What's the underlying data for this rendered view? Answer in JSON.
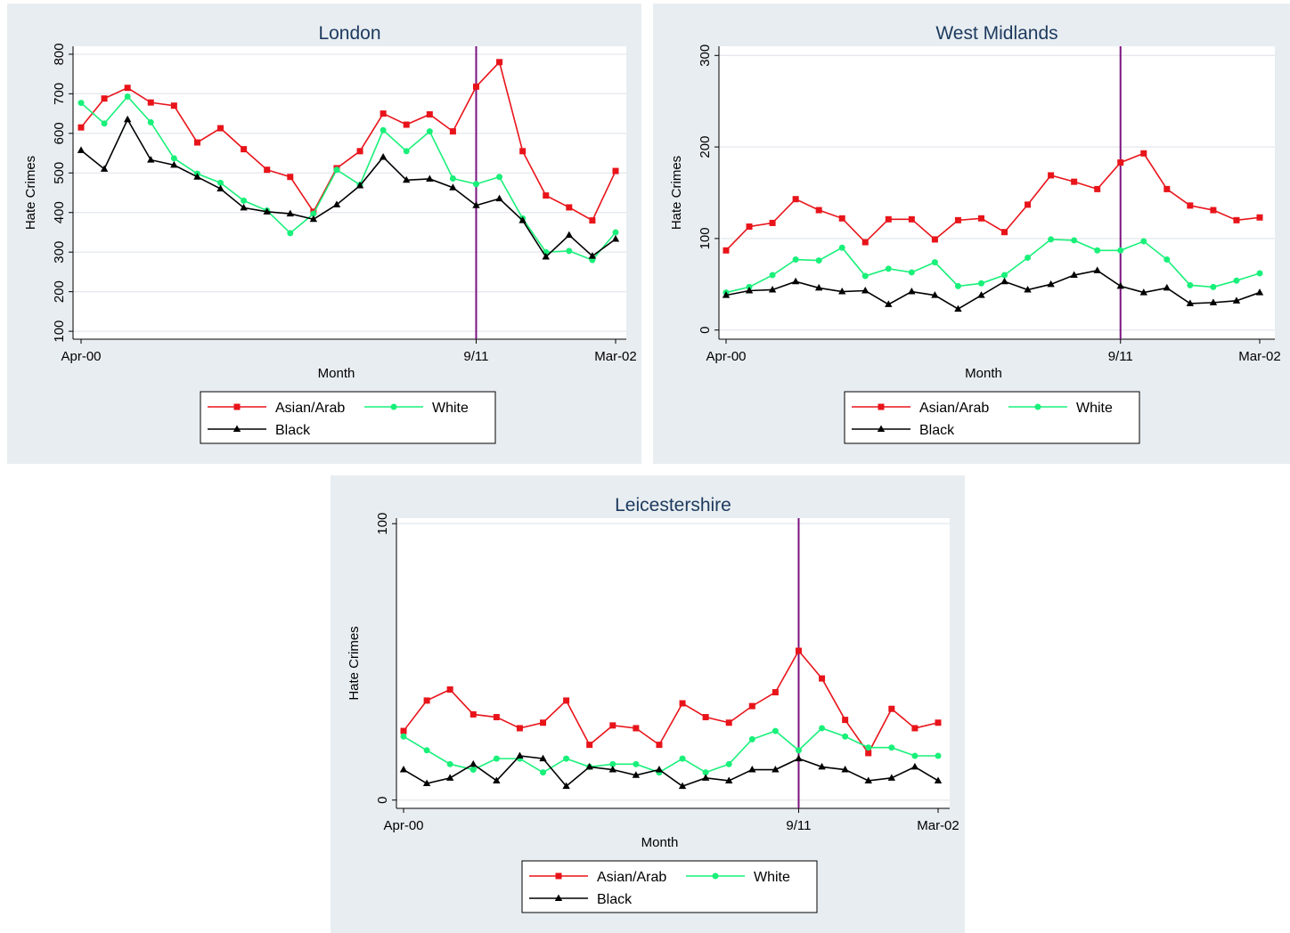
{
  "colors": {
    "asian_arab": "#e8141a",
    "white": "#19f07a",
    "black": "#000000",
    "event_line": "#7b1380",
    "panel_bg": "#e8edf1",
    "title": "#1c3a5e"
  },
  "chart_data": [
    {
      "type": "line",
      "title": "London",
      "xlabel": "Month",
      "ylabel": "Hate Crimes",
      "x_tick_labels": [
        "Apr-00",
        "9/11",
        "Mar-02"
      ],
      "x_tick_index": [
        0,
        17,
        23
      ],
      "event_marker": {
        "label": "9/11",
        "index": 17
      },
      "yticks": [
        100,
        200,
        300,
        400,
        500,
        600,
        700,
        800
      ],
      "ylim": [
        80,
        820
      ],
      "grid": true,
      "legend": "bottom",
      "series": [
        {
          "name": "Asian/Arab",
          "values": [
            615,
            688,
            715,
            678,
            670,
            577,
            613,
            560,
            508,
            490,
            402,
            512,
            555,
            650,
            622,
            648,
            605,
            718,
            780,
            555,
            443,
            413,
            380,
            505
          ]
        },
        {
          "name": "White",
          "values": [
            677,
            625,
            693,
            628,
            537,
            498,
            475,
            430,
            405,
            348,
            397,
            508,
            470,
            608,
            555,
            605,
            486,
            472,
            490,
            385,
            300,
            303,
            280,
            350
          ]
        },
        {
          "name": "Black",
          "values": [
            557,
            510,
            635,
            533,
            520,
            490,
            460,
            412,
            402,
            397,
            383,
            420,
            468,
            540,
            482,
            485,
            463,
            418,
            435,
            380,
            288,
            343,
            290,
            333
          ]
        }
      ]
    },
    {
      "type": "line",
      "title": "West Midlands",
      "xlabel": "Month",
      "ylabel": "Hate Crimes",
      "x_tick_labels": [
        "Apr-00",
        "9/11",
        "Mar-02"
      ],
      "x_tick_index": [
        0,
        17,
        23
      ],
      "event_marker": {
        "label": "9/11",
        "index": 17
      },
      "yticks": [
        0,
        100,
        200,
        300
      ],
      "ylim": [
        -10,
        310
      ],
      "grid": true,
      "legend": "bottom",
      "series": [
        {
          "name": "Asian/Arab",
          "values": [
            87,
            113,
            117,
            143,
            131,
            122,
            96,
            121,
            121,
            99,
            120,
            122,
            107,
            137,
            169,
            162,
            154,
            183,
            193,
            154,
            136,
            131,
            120,
            123
          ]
        },
        {
          "name": "White",
          "values": [
            41,
            47,
            60,
            77,
            76,
            90,
            59,
            67,
            63,
            74,
            48,
            51,
            60,
            79,
            99,
            98,
            87,
            87,
            97,
            77,
            49,
            47,
            54,
            62
          ]
        },
        {
          "name": "Black",
          "values": [
            38,
            43,
            44,
            53,
            46,
            42,
            43,
            28,
            42,
            38,
            23,
            38,
            53,
            44,
            50,
            60,
            65,
            48,
            41,
            46,
            29,
            30,
            32,
            41
          ]
        }
      ]
    },
    {
      "type": "line",
      "title": "Leicestershire",
      "xlabel": "Month",
      "ylabel": "Hate Crimes",
      "x_tick_labels": [
        "Apr-00",
        "9/11",
        "Mar-02"
      ],
      "x_tick_index": [
        0,
        17,
        23
      ],
      "event_marker": {
        "label": "9/11",
        "index": 17
      },
      "yticks": [
        0,
        100
      ],
      "ylim": [
        -3,
        102
      ],
      "grid": true,
      "legend": "bottom",
      "series": [
        {
          "name": "Asian/Arab",
          "values": [
            25,
            36,
            40,
            31,
            30,
            26,
            28,
            36,
            20,
            27,
            26,
            20,
            35,
            30,
            28,
            34,
            39,
            54,
            44,
            29,
            17,
            33,
            26,
            28
          ]
        },
        {
          "name": "White",
          "values": [
            23,
            18,
            13,
            11,
            15,
            15,
            10,
            15,
            12,
            13,
            13,
            10,
            15,
            10,
            13,
            22,
            25,
            18,
            26,
            23,
            19,
            19,
            16,
            16
          ]
        },
        {
          "name": "Black",
          "values": [
            11,
            6,
            8,
            13,
            7,
            16,
            15,
            5,
            12,
            11,
            9,
            11,
            5,
            8,
            7,
            11,
            11,
            15,
            12,
            11,
            7,
            8,
            12,
            7
          ]
        }
      ]
    }
  ]
}
